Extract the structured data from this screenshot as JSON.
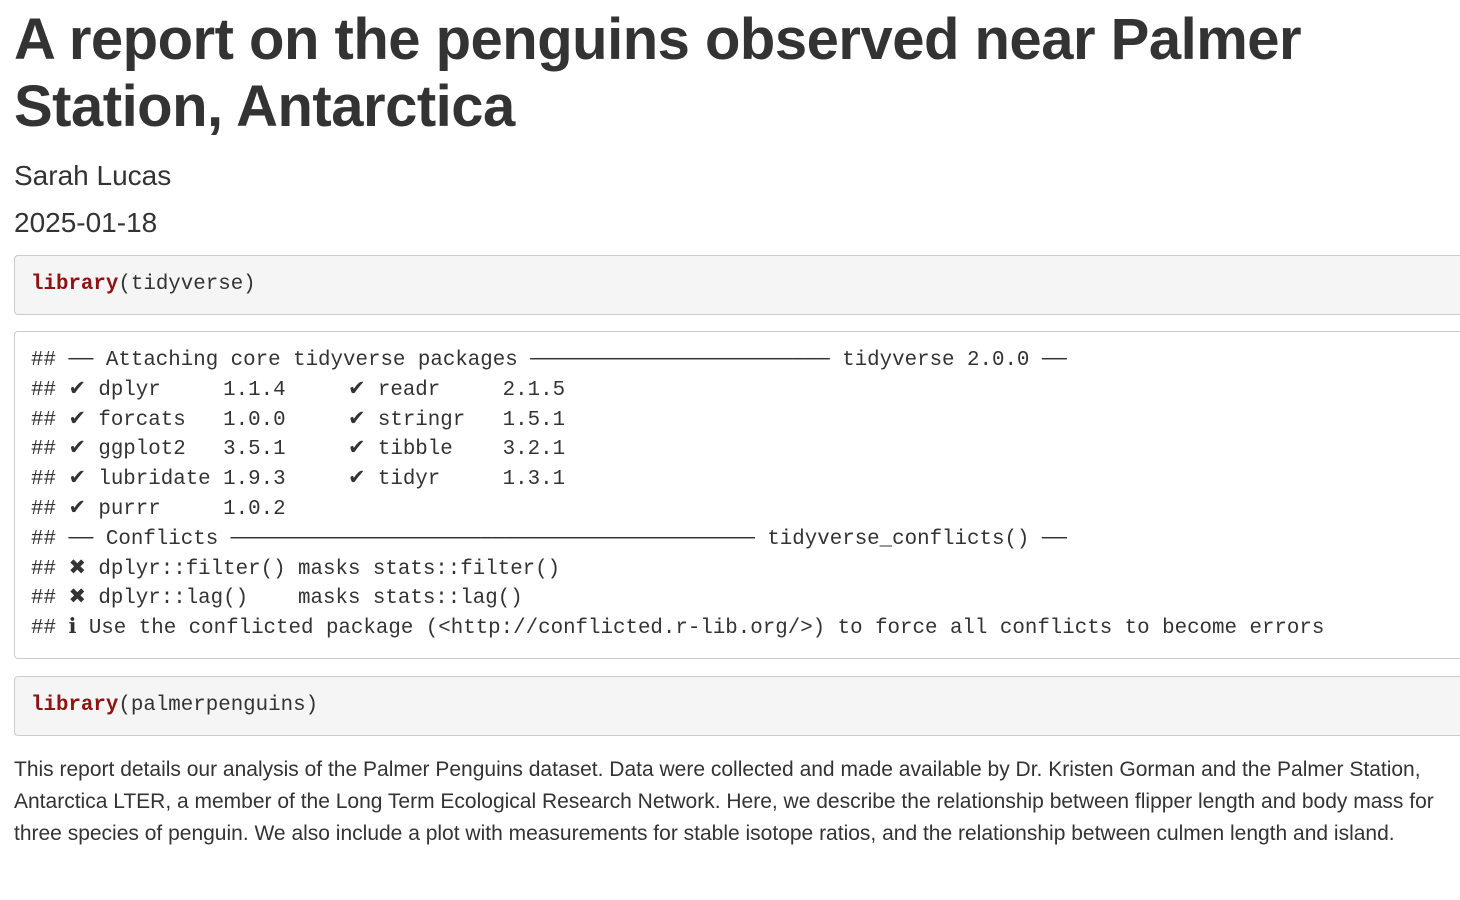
{
  "header": {
    "title": "A report on the penguins observed near Palmer Station, Antarctica",
    "author": "Sarah Lucas",
    "date": "2025-01-18"
  },
  "blocks": [
    {
      "keyword": "library",
      "args": "(tidyverse)"
    },
    {
      "output": [
        "## ── Attaching core tidyverse packages ──────────────────────── tidyverse 2.0.0 ──",
        "## ✔ dplyr     1.1.4     ✔ readr     2.1.5",
        "## ✔ forcats   1.0.0     ✔ stringr   1.5.1",
        "## ✔ ggplot2   3.5.1     ✔ tibble    3.2.1",
        "## ✔ lubridate 1.9.3     ✔ tidyr     1.3.1",
        "## ✔ purrr     1.0.2",
        "## ── Conflicts ────────────────────────────────────────── tidyverse_conflicts() ──",
        "## ✖ dplyr::filter() masks stats::filter()",
        "## ✖ dplyr::lag()    masks stats::lag()",
        "## ℹ Use the conflicted package (<http://conflicted.r-lib.org/>) to force all conflicts to become errors"
      ]
    },
    {
      "keyword": "library",
      "args": "(palmerpenguins)"
    }
  ],
  "paragraph": "This report details our analysis of the Palmer Penguins dataset. Data were collected and made available by Dr. Kristen Gorman and the Palmer Station, Antarctica LTER, a member of the Long Term Ecological Research Network. Here, we describe the relationship between flipper length and body mass for three species of penguin. We also include a plot with measurements for stable isotope ratios, and the relationship between culmen length and island."
}
